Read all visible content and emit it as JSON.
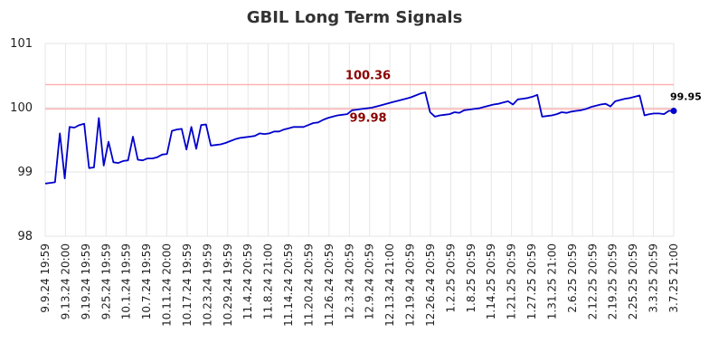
{
  "chart_data": {
    "type": "line",
    "title": "GBIL Long Term Signals",
    "xlabel": "",
    "ylabel": "",
    "ylim": [
      98,
      101
    ],
    "yticks": [
      "98",
      "99",
      "100",
      "101"
    ],
    "grid": true,
    "colors": {
      "line": "#0000cc",
      "reference": "#ffb3b3",
      "reference_label": "#8b0000",
      "grid": "#e6e6e6"
    },
    "x_tick_labels": [
      "9.9.24 19:59",
      "9.13.24 20:00",
      "9.19.24 19:59",
      "9.25.24 19:59",
      "10.1.24 19:59",
      "10.7.24 19:59",
      "10.11.24 20:00",
      "10.17.24 19:59",
      "10.23.24 19:59",
      "10.29.24 19:59",
      "11.4.24 20:59",
      "11.8.24 21:00",
      "11.14.24 20:59",
      "11.20.24 20:59",
      "11.26.24 20:59",
      "12.3.24 20:59",
      "12.9.24 20:59",
      "12.13.24 21:00",
      "12.19.24 20:59",
      "12.26.24 20:59",
      "1.2.25 20:59",
      "1.8.25 20:59",
      "1.14.25 20:59",
      "1.21.25 20:59",
      "1.27.25 20:59",
      "1.31.25 21:00",
      "2.6.25 20:59",
      "2.12.25 20:59",
      "2.19.25 20:59",
      "2.25.25 20:59",
      "3.3.25 20:59",
      "3.7.25 21:00"
    ],
    "reference_lines": [
      {
        "value": 100.36,
        "label": "100.36"
      },
      {
        "value": 99.98,
        "label": "99.98"
      }
    ],
    "last_value_label": "99.95",
    "series": [
      {
        "values": [
          98.82,
          98.83,
          98.84,
          99.6,
          98.9,
          99.7,
          99.69,
          99.73,
          99.75,
          99.06,
          99.07,
          99.84,
          99.1,
          99.47,
          99.15,
          99.14,
          99.17,
          99.18,
          99.55,
          99.19,
          99.18,
          99.21,
          99.21,
          99.23,
          99.27,
          99.28,
          99.64,
          99.66,
          99.67,
          99.35,
          99.7,
          99.36,
          99.73,
          99.74,
          99.41,
          99.42,
          99.43,
          99.45,
          99.48,
          99.51,
          99.53,
          99.54,
          99.55,
          99.56,
          99.6,
          99.59,
          99.6,
          99.63,
          99.63,
          99.66,
          99.68,
          99.7,
          99.7,
          99.7,
          99.73,
          99.76,
          99.77,
          99.81,
          99.84,
          99.86,
          99.88,
          99.89,
          99.9,
          99.96,
          99.97,
          99.98,
          99.99,
          100.0,
          100.02,
          100.04,
          100.06,
          100.08,
          100.1,
          100.12,
          100.14,
          100.16,
          100.19,
          100.22,
          100.24,
          99.93,
          99.86,
          99.88,
          99.89,
          99.9,
          99.93,
          99.92,
          99.96,
          99.97,
          99.98,
          99.99,
          100.01,
          100.03,
          100.05,
          100.06,
          100.08,
          100.1,
          100.05,
          100.13,
          100.14,
          100.15,
          100.17,
          100.2,
          99.86,
          99.87,
          99.88,
          99.9,
          99.93,
          99.92,
          99.94,
          99.95,
          99.96,
          99.98,
          100.01,
          100.03,
          100.05,
          100.06,
          100.02,
          100.1,
          100.12,
          100.14,
          100.15,
          100.17,
          100.19,
          99.88,
          99.9,
          99.91,
          99.91,
          99.9,
          99.95,
          99.95
        ]
      }
    ]
  }
}
